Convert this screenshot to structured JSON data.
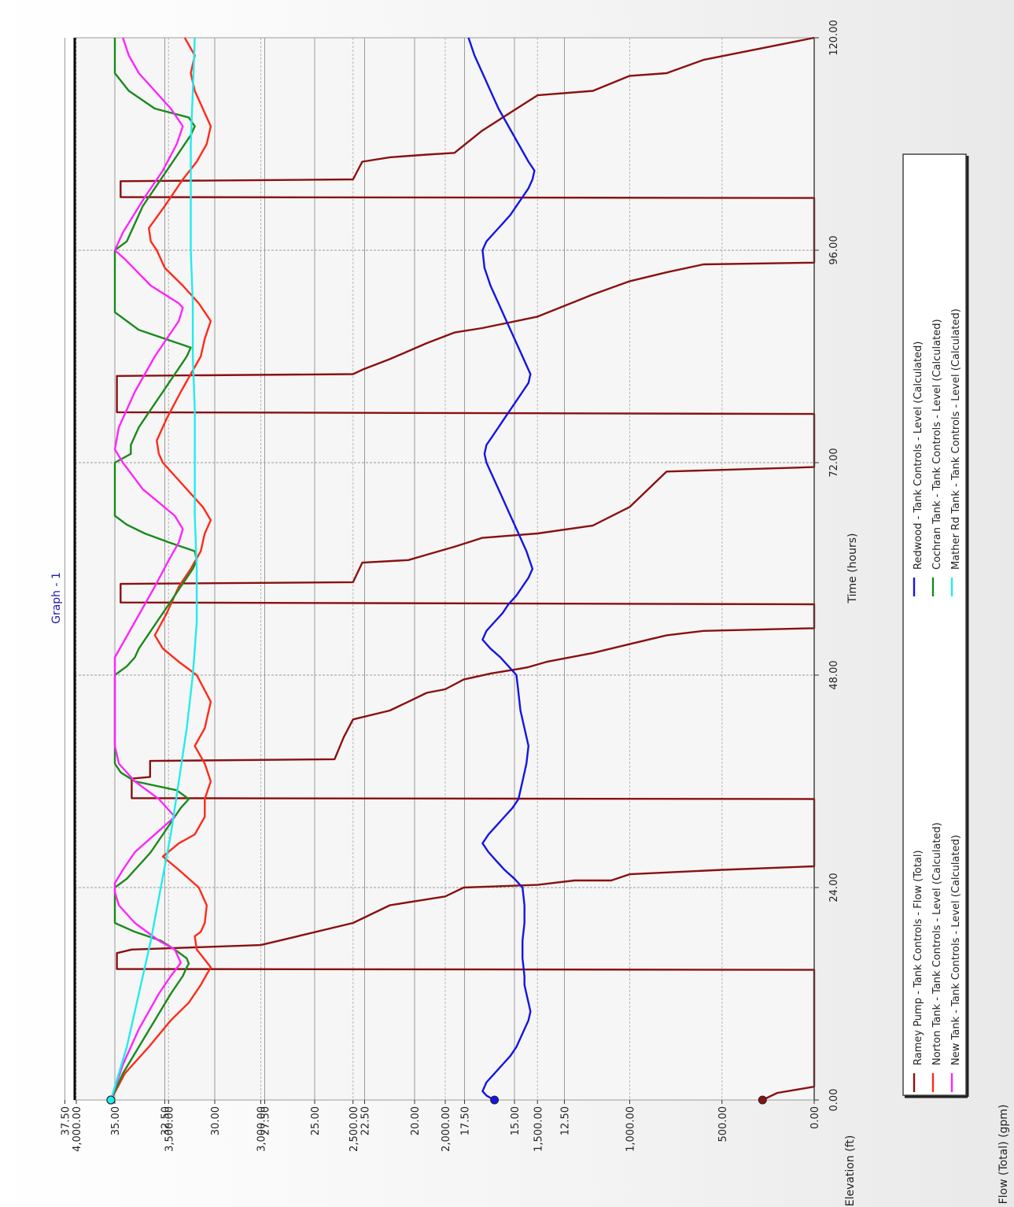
{
  "chart_data": {
    "type": "line",
    "title": "Graph - 1",
    "xlabel": "Time (hours)",
    "x_ticks": [
      "0.00",
      "24.00",
      "48.00",
      "72.00",
      "96.00",
      "120.00"
    ],
    "xlim": [
      0,
      120
    ],
    "grid": true,
    "legend_position": "right",
    "axes": {
      "elevation": {
        "label": "Elevation (ft)",
        "ylim": [
          0,
          37.5
        ],
        "ticks": [
          "37.50",
          "35.00",
          "32.50",
          "30.00",
          "27.50",
          "25.00",
          "22.50",
          "20.00",
          "17.50",
          "15.00",
          "12.50"
        ]
      },
      "flow": {
        "label": "Flow (Total) (gpm)",
        "ylim": [
          0,
          4000
        ],
        "ticks": [
          "4,000.00",
          "3,500.00",
          "3,000.00",
          "2,500.00",
          "2,000.00",
          "1,500.00",
          "1,000.00",
          "500.00",
          "0.00"
        ]
      }
    },
    "series": [
      {
        "name": "Ramey Pump - Tank Controls - Flow (Total)",
        "axis": "flow",
        "color": "#8b1010",
        "x": [
          0,
          0.8,
          1.5,
          14.7,
          14.8,
          16.6,
          17,
          17,
          17.5,
          18.5,
          20,
          22,
          23,
          24,
          24.3,
          24.8,
          24.8,
          25.5,
          26,
          26.4,
          26.5,
          34,
          34.1,
          36.3,
          36.5,
          38.3,
          38.5,
          41,
          43,
          44,
          45,
          46,
          46.4,
          47.5,
          48.2,
          48.7,
          48.9,
          49.5,
          50.5,
          51.5,
          52.5,
          53,
          53.3,
          56,
          56.2,
          58.3,
          58.5,
          60.7,
          61,
          61.6,
          62.5,
          63.5,
          64,
          64.9,
          67,
          71,
          71.5,
          77.5,
          77.7,
          81.8,
          82,
          82.5,
          83.7,
          85.5,
          86.7,
          87.2,
          88.5,
          91,
          92.5,
          93.5,
          94.4,
          94.6,
          101.9,
          102,
          103.8,
          104,
          106,
          106.5,
          106.8,
          107,
          109.5,
          113.5,
          114,
          115.7,
          116,
          117.5,
          120
        ],
        "values": [
          280,
          200,
          0,
          0,
          3780,
          3780,
          3700,
          3700,
          3000,
          2800,
          2500,
          2300,
          2000,
          1900,
          1500,
          1300,
          1100,
          1000,
          500,
          0,
          0,
          0,
          3700,
          3700,
          3600,
          3600,
          2600,
          2550,
          2500,
          2300,
          2200,
          2100,
          2000,
          1900,
          1750,
          1600,
          1550,
          1450,
          1200,
          1000,
          800,
          600,
          0,
          0,
          3760,
          3760,
          2500,
          2450,
          2200,
          2100,
          1950,
          1800,
          1500,
          1200,
          1000,
          800,
          0,
          0,
          3780,
          3780,
          2500,
          2450,
          2300,
          2100,
          1950,
          1800,
          1500,
          1200,
          1000,
          800,
          600,
          0,
          0,
          3760,
          3760,
          2500,
          2450,
          2300,
          2100,
          1950,
          1800,
          1500,
          1200,
          1000,
          800,
          600,
          0
        ]
      },
      {
        "name": "Norton Tank - Tank Controls - Level (Calculated)",
        "axis": "elevation",
        "color": "#ff2a1a",
        "x": [
          0,
          3,
          6,
          9,
          11,
          13,
          15,
          17,
          18.5,
          19,
          20,
          22,
          24,
          26,
          27.5,
          29,
          30,
          32,
          34,
          36,
          38,
          40,
          42,
          45,
          48,
          49.5,
          51,
          52.5,
          55,
          58,
          60,
          62,
          64,
          65.5,
          67,
          70,
          72,
          73,
          74.5,
          77,
          80,
          82,
          84,
          86,
          88,
          90,
          92,
          94,
          96,
          97,
          98.5,
          101,
          104,
          106,
          108,
          110,
          112,
          114,
          116,
          118,
          120
        ],
        "values": [
          35.2,
          34.5,
          33.3,
          32.2,
          31.3,
          30.7,
          30.2,
          30.9,
          31.0,
          30.7,
          30.5,
          30.4,
          30.8,
          31.8,
          32.6,
          31.8,
          31.0,
          30.5,
          30.5,
          30.2,
          30.5,
          31.0,
          30.5,
          30.2,
          30.9,
          31.8,
          32.6,
          33.0,
          32.4,
          31.8,
          31.2,
          30.7,
          30.5,
          30.2,
          30.6,
          31.8,
          32.6,
          32.8,
          32.9,
          32.4,
          31.7,
          31.2,
          30.7,
          30.5,
          30.2,
          30.8,
          31.6,
          32.5,
          32.9,
          33.2,
          33.3,
          32.5,
          31.6,
          30.9,
          30.4,
          30.2,
          30.6,
          31.0,
          31.2,
          31.0,
          31.5
        ]
      },
      {
        "name": "New Tank - Tank Controls - Level (Calculated)",
        "axis": "elevation",
        "color": "#ff24ff",
        "x": [
          0,
          4,
          8,
          12,
          14,
          15.5,
          16,
          17,
          18,
          20,
          22,
          23.5,
          24.5,
          26,
          28,
          31,
          32,
          34,
          36,
          38,
          40,
          44,
          48,
          50,
          54,
          58,
          61,
          63,
          64.5,
          66,
          69,
          72,
          73.5,
          76,
          80,
          84,
          86,
          88,
          89.5,
          90,
          92,
          95,
          96,
          98,
          102,
          105,
          108,
          110,
          112,
          114,
          116,
          118,
          120
        ],
        "values": [
          35.2,
          34.6,
          33.8,
          32.8,
          32.2,
          31.7,
          31.8,
          32.0,
          32.8,
          34.0,
          34.8,
          35.0,
          35.0,
          34.6,
          34.0,
          32.5,
          32.0,
          32.8,
          34.0,
          34.8,
          35.0,
          35.0,
          35.0,
          35.0,
          34.0,
          33.0,
          32.3,
          31.8,
          31.6,
          32.0,
          33.6,
          34.6,
          35.0,
          34.8,
          34.0,
          33.0,
          32.4,
          31.8,
          31.6,
          31.8,
          33.2,
          34.5,
          35.0,
          34.6,
          33.5,
          32.6,
          31.9,
          31.6,
          32.2,
          33.0,
          33.8,
          34.3,
          34.6
        ]
      },
      {
        "name": "Redwood - Tank Controls - Level (Calculated)",
        "axis": "elevation",
        "color": "#1414e6",
        "x": [
          0,
          0.5,
          1,
          2,
          3,
          4,
          5,
          6,
          7,
          8,
          9,
          10,
          11,
          12,
          13,
          14,
          16,
          18,
          20,
          22,
          24,
          25,
          26,
          27,
          28,
          29,
          30,
          31,
          32,
          33,
          34,
          36,
          38,
          40,
          42,
          44,
          46,
          48,
          49,
          50,
          51,
          52,
          53,
          54,
          55,
          56,
          57,
          58,
          59,
          60,
          62,
          64,
          66,
          68,
          70,
          72,
          73,
          74,
          75,
          76,
          77,
          78,
          79,
          80,
          81,
          82,
          84,
          86,
          88,
          90,
          92,
          94,
          96,
          97,
          98,
          99,
          100,
          101,
          102,
          103,
          104,
          105,
          106,
          108,
          110,
          112,
          114,
          116,
          118,
          120
        ],
        "values": [
          16.0,
          16.4,
          16.6,
          16.4,
          16.0,
          15.6,
          15.2,
          14.9,
          14.7,
          14.5,
          14.3,
          14.2,
          14.3,
          14.4,
          14.5,
          14.5,
          14.6,
          14.6,
          14.5,
          14.5,
          14.6,
          15.0,
          15.5,
          15.9,
          16.3,
          16.6,
          16.3,
          15.9,
          15.5,
          15.1,
          14.8,
          14.6,
          14.4,
          14.3,
          14.5,
          14.7,
          14.8,
          14.9,
          15.3,
          15.7,
          16.2,
          16.6,
          16.4,
          16.0,
          15.6,
          15.3,
          14.9,
          14.6,
          14.3,
          14.1,
          14.4,
          14.8,
          15.2,
          15.6,
          16.0,
          16.4,
          16.5,
          16.4,
          16.1,
          15.8,
          15.5,
          15.2,
          14.9,
          14.6,
          14.3,
          14.2,
          14.6,
          15.0,
          15.4,
          15.8,
          16.2,
          16.5,
          16.6,
          16.4,
          16.0,
          15.6,
          15.2,
          14.9,
          14.6,
          14.3,
          14.1,
          14.0,
          14.3,
          14.8,
          15.3,
          15.8,
          16.2,
          16.6,
          17.0,
          17.3
        ]
      },
      {
        "name": "Cochran Tank - Tank Controls - Level (Calculated)",
        "axis": "elevation",
        "color": "#1a8a1a",
        "x": [
          0,
          3,
          6,
          9,
          12,
          14,
          15,
          15.4,
          16,
          17,
          18,
          19,
          20,
          24,
          25,
          26,
          27,
          28,
          29,
          30,
          31,
          32,
          33,
          34,
          35,
          36,
          37,
          38,
          40,
          48,
          49,
          50,
          51,
          52,
          53,
          54,
          55,
          56,
          57,
          58,
          59,
          60,
          61,
          62,
          63,
          64,
          65,
          66,
          67,
          68,
          70,
          72,
          73,
          74,
          75,
          76,
          77,
          78,
          79,
          80,
          81,
          82,
          83,
          84,
          85,
          86,
          87,
          88,
          89,
          90,
          91,
          92,
          94,
          96,
          97,
          98,
          99,
          100,
          101,
          102,
          103,
          104,
          105,
          106,
          107,
          108,
          109,
          110,
          111,
          112,
          114,
          116,
          118,
          120
        ],
        "values": [
          35.2,
          34.6,
          33.8,
          33.0,
          32.2,
          31.6,
          31.4,
          31.3,
          31.4,
          32.0,
          32.7,
          34.0,
          35.0,
          35.0,
          34.4,
          34.0,
          33.6,
          33.2,
          32.9,
          32.6,
          32.3,
          32.0,
          31.7,
          31.3,
          31.9,
          34.0,
          34.7,
          35.0,
          35.0,
          35.0,
          34.4,
          34.0,
          33.8,
          33.5,
          33.2,
          32.9,
          32.6,
          32.3,
          32.0,
          31.7,
          31.4,
          31.1,
          30.9,
          31.0,
          32.3,
          33.5,
          34.4,
          35.0,
          35.0,
          35.0,
          35.0,
          35.0,
          34.2,
          34.2,
          34.0,
          33.8,
          33.5,
          33.2,
          32.9,
          32.6,
          32.3,
          32.0,
          31.7,
          31.4,
          31.2,
          32.5,
          33.8,
          34.4,
          35.0,
          35.0,
          35.0,
          35.0,
          35.0,
          35.0,
          34.4,
          34.2,
          34.0,
          33.8,
          33.6,
          33.3,
          33.0,
          32.7,
          32.4,
          32.1,
          31.8,
          31.5,
          31.2,
          31.0,
          31.3,
          33.0,
          34.3,
          35.0,
          35.0,
          35.0
        ]
      },
      {
        "name": "Mather Rd Tank - Tank Controls - Level (Calculated)",
        "axis": "elevation",
        "color": "#22ecec",
        "x": [
          0,
          6,
          12,
          18,
          24,
          30,
          36,
          42,
          48,
          54,
          60,
          66,
          72,
          78,
          84,
          90,
          96,
          102,
          108,
          114,
          120
        ],
        "values": [
          35.2,
          34.4,
          33.8,
          33.2,
          32.7,
          32.2,
          31.8,
          31.4,
          31.1,
          30.9,
          30.9,
          31.0,
          31.0,
          31.0,
          31.1,
          31.1,
          31.2,
          31.2,
          31.2,
          31.1,
          31.0
        ]
      }
    ]
  }
}
